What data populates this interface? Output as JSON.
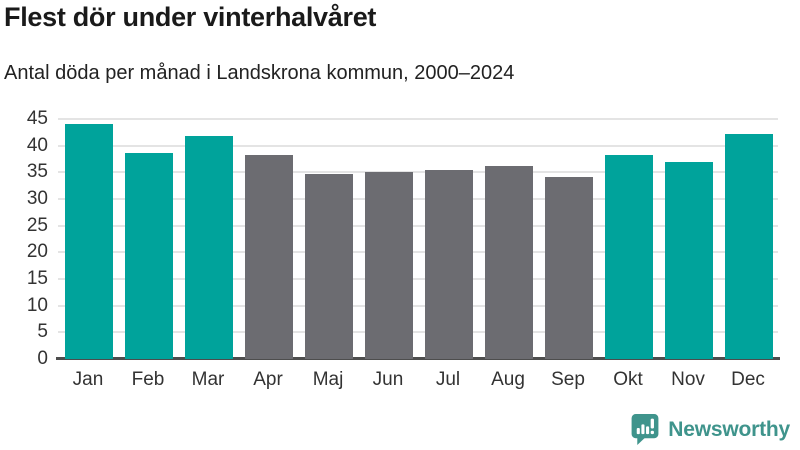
{
  "chart_data": {
    "type": "bar",
    "title": "Flest dör under vinterhalvåret",
    "subtitle": "Antal döda per månad i Landskrona kommun, 2000–2024",
    "categories": [
      "Jan",
      "Feb",
      "Mar",
      "Apr",
      "Maj",
      "Jun",
      "Jul",
      "Aug",
      "Sep",
      "Okt",
      "Nov",
      "Dec"
    ],
    "values": [
      44.0,
      38.6,
      41.9,
      38.3,
      34.6,
      35.0,
      35.4,
      36.2,
      34.1,
      38.2,
      36.9,
      42.2
    ],
    "xlabel": "",
    "ylabel": "",
    "ylim": [
      0,
      45
    ],
    "yticks": [
      0,
      5,
      10,
      15,
      20,
      25,
      30,
      35,
      40,
      45
    ],
    "grid": true,
    "legend": false,
    "highlighted_categories": [
      "Jan",
      "Feb",
      "Mar",
      "Okt",
      "Nov",
      "Dec"
    ],
    "highlight_color": "#00a39b",
    "muted_color": "#6c6c71"
  },
  "footer": {
    "brand": "Newsworthy"
  },
  "colors": {
    "brand": "#3f948c",
    "axis_line": "#4d4d4d",
    "gridline": "#e4e4e4",
    "title_text": "#1a1a1a",
    "label_text": "#333333"
  }
}
